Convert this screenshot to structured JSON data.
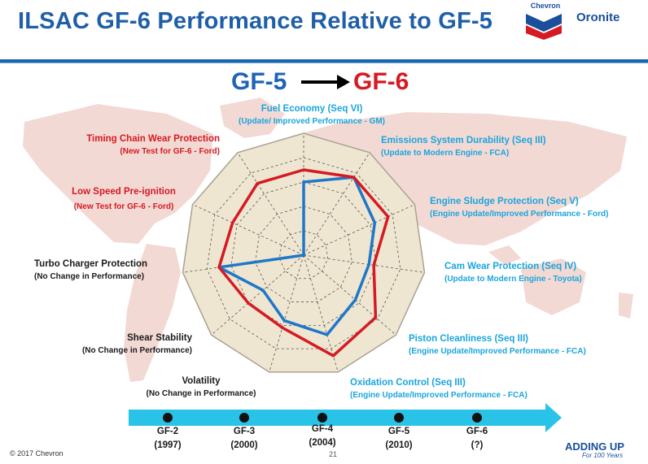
{
  "title": "ILSAC GF-6 Performance Relative to GF-5",
  "logos": {
    "chevron": "Chevron",
    "oronite": "Oronite"
  },
  "comparison": {
    "from": "GF-5",
    "to": "GF-6",
    "colors": {
      "from": "#1f63b4",
      "to": "#d51a22"
    }
  },
  "chart_data": {
    "type": "radar",
    "scale": [
      0,
      5
    ],
    "rings": 5,
    "axes": [
      {
        "name": "Fuel Economy (Seq VI)",
        "note": "(Update/ Improved Performance - GM)",
        "color": "blue"
      },
      {
        "name": "Emissions System Durability (Seq III)",
        "note": "(Update to Modern Engine - FCA)",
        "color": "blue"
      },
      {
        "name": "Engine Sludge Protection (Seq V)",
        "note": "(Engine Update/Improved Performance - Ford)",
        "color": "blue"
      },
      {
        "name": "Cam Wear Protection (Seq IV)",
        "note": "(Update to Modern Engine - Toyota)",
        "color": "blue"
      },
      {
        "name": "Piston Cleanliness (Seq III)",
        "note": "(Engine Update/Improved Performance - FCA)",
        "color": "blue"
      },
      {
        "name": "Oxidation Control (Seq III)",
        "note": "(Engine Update/Improved Performance - FCA)",
        "color": "blue"
      },
      {
        "name": "Volatility",
        "note": "(No Change in Performance)",
        "color": "dark"
      },
      {
        "name": "Shear Stability",
        "note": "(No Change in Performance)",
        "color": "dark"
      },
      {
        "name": "Turbo Charger Protection",
        "note": "(No Change in Performance)",
        "color": "dark"
      },
      {
        "name": "Low Speed Pre-ignition",
        "note": "(New Test for GF-6 - Ford)",
        "color": "red"
      },
      {
        "name": "Timing Chain Wear Protection",
        "note": "(New Test for GF-6 - Ford)",
        "color": "red"
      }
    ],
    "series": [
      {
        "name": "GF-5",
        "color": "#1f77c8",
        "values": [
          3.0,
          3.8,
          3.2,
          2.7,
          2.8,
          3.4,
          2.8,
          2.2,
          3.5,
          0,
          0
        ]
      },
      {
        "name": "GF-6",
        "color": "#d51a22",
        "values": [
          3.5,
          3.8,
          3.8,
          2.9,
          3.9,
          4.3,
          3.1,
          3.0,
          3.5,
          3.2,
          3.5
        ]
      }
    ]
  },
  "timeline": {
    "items": [
      {
        "label": "GF-2",
        "year": "(1997)"
      },
      {
        "label": "GF-3",
        "year": "(2000)"
      },
      {
        "label": "GF-4",
        "year": "(2004)"
      },
      {
        "label": "GF-5",
        "year": "(2010)"
      },
      {
        "label": "GF-6",
        "year": "(?)"
      }
    ]
  },
  "footer": {
    "copyright": "© 2017 Chevron",
    "page": "21",
    "tagline": "ADDING UP",
    "tagline_sub": "For 100 Years"
  }
}
